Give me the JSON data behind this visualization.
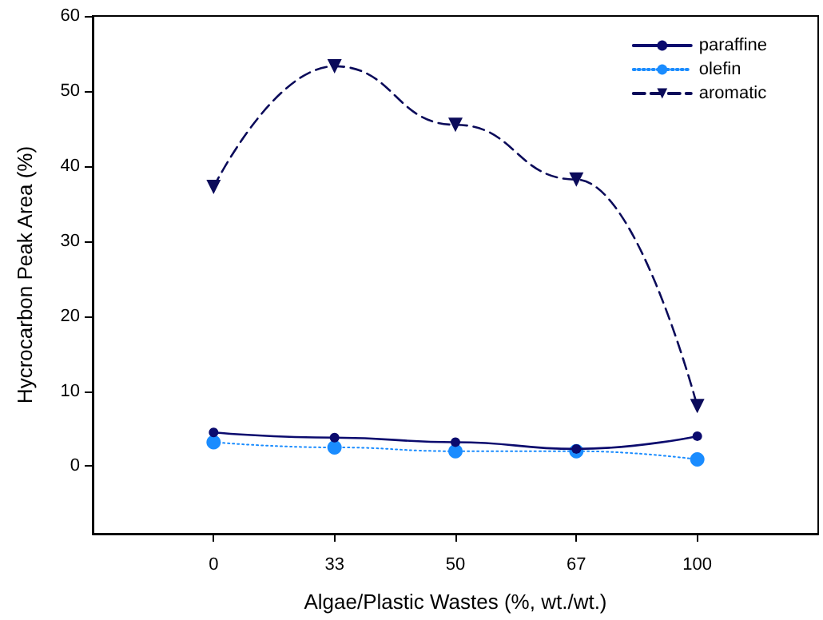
{
  "chart_data": {
    "type": "line",
    "xlabel": "Algae/Plastic Wastes (%, wt./wt.)",
    "ylabel": "Hycrocarbon Peak Area (%)",
    "categories": [
      null,
      "0",
      "33",
      "50",
      "67",
      "100",
      null
    ],
    "series": [
      {
        "name": "paraffine",
        "color": "#0b0b6e",
        "marker": "circle",
        "line_style": "solid",
        "values": [
          null,
          4.5,
          3.8,
          3.2,
          2.3,
          4.0,
          null
        ]
      },
      {
        "name": "olefin",
        "color": "#1a8cff",
        "marker": "circle",
        "line_style": "dotted",
        "values": [
          null,
          3.2,
          2.5,
          2.0,
          2.0,
          0.9,
          null
        ]
      },
      {
        "name": "aromatic",
        "color": "#0b0b5a",
        "marker": "triangle",
        "line_style": "dashed",
        "values": [
          null,
          37.2,
          53.3,
          45.5,
          38.2,
          8.0,
          null
        ]
      }
    ],
    "ylim": [
      -9,
      60
    ],
    "yticks": [
      0,
      10,
      20,
      30,
      40,
      50,
      60
    ],
    "grid": false,
    "legend": "top right"
  }
}
